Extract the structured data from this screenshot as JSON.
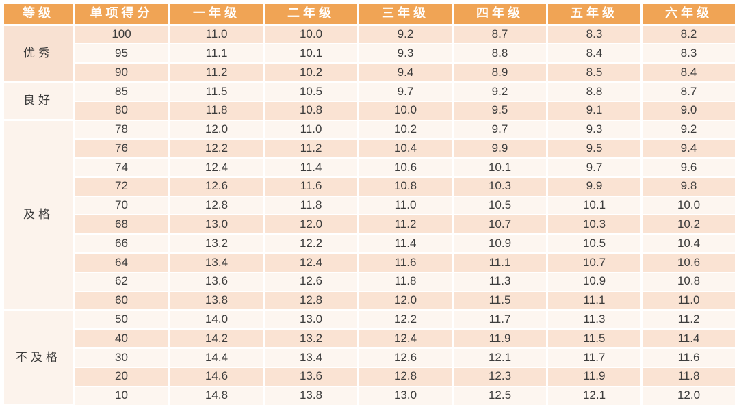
{
  "colors": {
    "header_bg": "#F0A455",
    "header_text": "#FFFFFF",
    "row_pink": "#FAE3D3",
    "row_cream": "#FDF6F0",
    "group_pink": "#F8E1D2",
    "group_cream": "#FCF3EC",
    "text": "#3C3C3C",
    "divider": "#FFFFFF"
  },
  "chart_data": {
    "type": "table",
    "columns": [
      "等级",
      "单项得分",
      "一年级",
      "二年级",
      "三年级",
      "四年级",
      "五年级",
      "六年级"
    ],
    "groups": [
      {
        "grade": "优秀",
        "bg": "group_pink",
        "rows": [
          {
            "score": 100,
            "times": [
              11.0,
              10.0,
              9.2,
              8.7,
              8.3,
              8.2
            ]
          },
          {
            "score": 95,
            "times": [
              11.1,
              10.1,
              9.3,
              8.8,
              8.4,
              8.3
            ]
          },
          {
            "score": 90,
            "times": [
              11.2,
              10.2,
              9.4,
              8.9,
              8.5,
              8.4
            ]
          }
        ]
      },
      {
        "grade": "良好",
        "bg": "group_cream",
        "rows": [
          {
            "score": 85,
            "times": [
              11.5,
              10.5,
              9.7,
              9.2,
              8.8,
              8.7
            ]
          },
          {
            "score": 80,
            "times": [
              11.8,
              10.8,
              10.0,
              9.5,
              9.1,
              9.0
            ]
          }
        ]
      },
      {
        "grade": "及格",
        "bg": "group_cream",
        "rows": [
          {
            "score": 78,
            "times": [
              12.0,
              11.0,
              10.2,
              9.7,
              9.3,
              9.2
            ]
          },
          {
            "score": 76,
            "times": [
              12.2,
              11.2,
              10.4,
              9.9,
              9.5,
              9.4
            ]
          },
          {
            "score": 74,
            "times": [
              12.4,
              11.4,
              10.6,
              10.1,
              9.7,
              9.6
            ]
          },
          {
            "score": 72,
            "times": [
              12.6,
              11.6,
              10.8,
              10.3,
              9.9,
              9.8
            ]
          },
          {
            "score": 70,
            "times": [
              12.8,
              11.8,
              11.0,
              10.5,
              10.1,
              10.0
            ]
          },
          {
            "score": 68,
            "times": [
              13.0,
              12.0,
              11.2,
              10.7,
              10.3,
              10.2
            ]
          },
          {
            "score": 66,
            "times": [
              13.2,
              12.2,
              11.4,
              10.9,
              10.5,
              10.4
            ]
          },
          {
            "score": 64,
            "times": [
              13.4,
              12.4,
              11.6,
              11.1,
              10.7,
              10.6
            ]
          },
          {
            "score": 62,
            "times": [
              13.6,
              12.6,
              11.8,
              11.3,
              10.9,
              10.8
            ]
          },
          {
            "score": 60,
            "times": [
              13.8,
              12.8,
              12.0,
              11.5,
              11.1,
              11.0
            ]
          }
        ]
      },
      {
        "grade": "不及格",
        "bg": "group_cream",
        "rows": [
          {
            "score": 50,
            "times": [
              14.0,
              13.0,
              12.2,
              11.7,
              11.3,
              11.2
            ]
          },
          {
            "score": 40,
            "times": [
              14.2,
              13.2,
              12.4,
              11.9,
              11.5,
              11.4
            ]
          },
          {
            "score": 30,
            "times": [
              14.4,
              13.4,
              12.6,
              12.1,
              11.7,
              11.6
            ]
          },
          {
            "score": 20,
            "times": [
              14.6,
              13.6,
              12.8,
              12.3,
              11.9,
              11.8
            ]
          },
          {
            "score": 10,
            "times": [
              14.8,
              13.8,
              13.0,
              12.5,
              12.1,
              12.0
            ]
          }
        ]
      }
    ]
  }
}
